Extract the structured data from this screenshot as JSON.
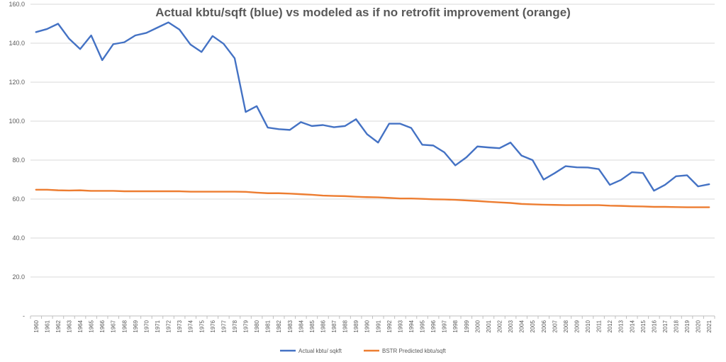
{
  "chart_data": {
    "type": "line",
    "title": "Actual kbtu/sqft (blue) vs modeled as if no retrofit improvement (orange)",
    "xlabel": "",
    "ylabel": "",
    "x": [
      "1960",
      "1961",
      "1962",
      "1963",
      "1964",
      "1965",
      "1966",
      "1967",
      "1968",
      "1969",
      "1970",
      "1971",
      "1972",
      "1973",
      "1974",
      "1975",
      "1976",
      "1977",
      "1978",
      "1979",
      "1980",
      "1981",
      "1982",
      "1983",
      "1984",
      "1985",
      "1986",
      "1987",
      "1988",
      "1989",
      "1990",
      "1991",
      "1992",
      "1993",
      "1994",
      "1995",
      "1996",
      "1997",
      "1998",
      "1999",
      "2000",
      "2001",
      "2002",
      "2003",
      "2004",
      "2005",
      "2006",
      "2007",
      "2008",
      "2009",
      "2010",
      "2011",
      "2012",
      "2013",
      "2014",
      "2015",
      "2016",
      "2017",
      "2018",
      "2019",
      "2020",
      "2021"
    ],
    "ylim": [
      0,
      160
    ],
    "yticks": [
      "-",
      "20.0",
      "40.0",
      "60.0",
      "80.0",
      "100.0",
      "120.0",
      "140.0",
      "160.0"
    ],
    "grid": true,
    "legend_position": "bottom",
    "series": [
      {
        "name": "Actual kbtu/ sqkft",
        "color": "#4472C4",
        "values": [
          145.7,
          147.3,
          150.0,
          142.3,
          137.0,
          144.0,
          131.3,
          139.5,
          140.5,
          144.0,
          145.3,
          148.0,
          150.7,
          147.0,
          139.3,
          135.5,
          143.7,
          139.7,
          132.3,
          104.7,
          107.7,
          96.7,
          95.9,
          95.5,
          99.5,
          97.5,
          98.0,
          96.9,
          97.5,
          101.0,
          93.3,
          89.0,
          98.7,
          98.7,
          96.5,
          87.9,
          87.5,
          84.0,
          77.3,
          81.4,
          87.0,
          86.5,
          86.1,
          89.0,
          82.3,
          80.0,
          70.0,
          73.3,
          76.9,
          76.3,
          76.2,
          75.4,
          67.3,
          69.8,
          73.8,
          73.4,
          64.3,
          67.3,
          71.7,
          72.2,
          66.5,
          67.6
        ]
      },
      {
        "name": "BSTR Predicted kbtu/sqft",
        "color": "#ED7D31",
        "values": [
          64.8,
          64.8,
          64.5,
          64.4,
          64.5,
          64.2,
          64.2,
          64.2,
          64.0,
          64.0,
          64.0,
          64.0,
          64.0,
          64.0,
          63.8,
          63.8,
          63.8,
          63.8,
          63.8,
          63.7,
          63.3,
          63.0,
          63.0,
          62.8,
          62.5,
          62.2,
          61.8,
          61.6,
          61.5,
          61.2,
          61.0,
          60.9,
          60.6,
          60.3,
          60.3,
          60.1,
          59.9,
          59.8,
          59.6,
          59.3,
          59.0,
          58.6,
          58.3,
          58.0,
          57.5,
          57.3,
          57.1,
          57.0,
          56.9,
          56.9,
          56.9,
          56.9,
          56.6,
          56.5,
          56.3,
          56.2,
          56.0,
          56.0,
          55.9,
          55.8,
          55.8,
          55.8
        ]
      }
    ]
  }
}
